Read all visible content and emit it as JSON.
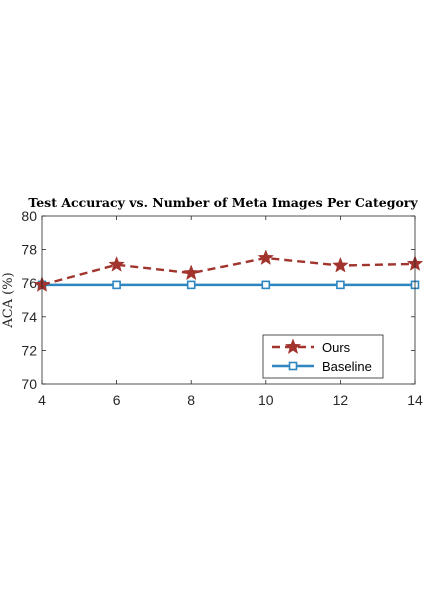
{
  "chart_data": {
    "type": "line",
    "title": "Test Accuracy vs. Number of Meta Images Per Category",
    "xlabel": "",
    "ylabel": "ACA (%)",
    "x": [
      4,
      6,
      8,
      10,
      12,
      14
    ],
    "xticks": [
      4,
      6,
      8,
      10,
      12,
      14
    ],
    "yticks": [
      70,
      72,
      74,
      76,
      78,
      80
    ],
    "xlim": [
      4,
      14
    ],
    "ylim": [
      70,
      80
    ],
    "grid": false,
    "legend_position": "bottom-right",
    "series": [
      {
        "name": "Ours",
        "values": [
          75.9,
          77.1,
          76.6,
          77.5,
          77.05,
          77.15
        ],
        "color": "#A2342E",
        "line_style": "dashed",
        "marker": "star"
      },
      {
        "name": "Baseline",
        "values": [
          75.9,
          75.9,
          75.9,
          75.9,
          75.9,
          75.9
        ],
        "color": "#2E86C1",
        "line_style": "solid",
        "marker": "square"
      }
    ]
  }
}
